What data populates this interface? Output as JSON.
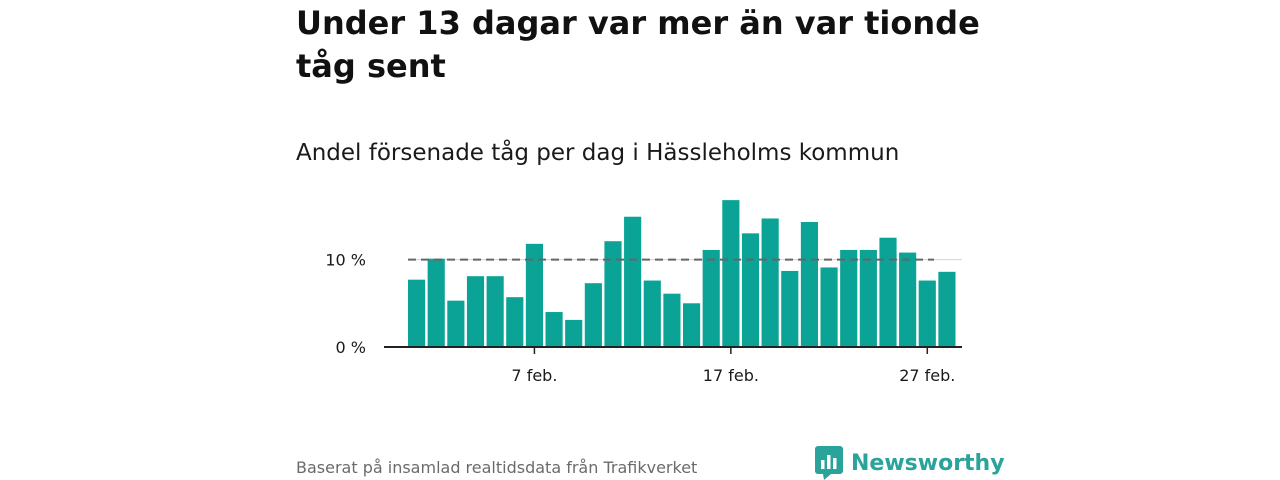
{
  "title": "Under 13 dagar var mer än var tionde tåg sent",
  "subtitle": "Andel försenade tåg per dag i Hässleholms kommun",
  "source": "Baserat på insamlad realtidsdata från Trafikverket",
  "brand": {
    "name": "Newsworthy",
    "icon": "newsworthy-logo-icon",
    "color": "#2aa39a"
  },
  "chart_data": {
    "type": "bar",
    "title": "Andel försenade tåg per dag i Hässleholms kommun",
    "xlabel": "",
    "ylabel": "",
    "unit": "%",
    "bar_color": "#0aa396",
    "x": [
      "1 feb.",
      "2 feb.",
      "3 feb.",
      "4 feb.",
      "5 feb.",
      "6 feb.",
      "7 feb.",
      "8 feb.",
      "9 feb.",
      "10 feb.",
      "11 feb.",
      "12 feb.",
      "13 feb.",
      "14 feb.",
      "15 feb.",
      "16 feb.",
      "17 feb.",
      "18 feb.",
      "19 feb.",
      "20 feb.",
      "21 feb.",
      "22 feb.",
      "23 feb.",
      "24 feb.",
      "25 feb.",
      "26 feb.",
      "27 feb.",
      "28 feb."
    ],
    "values": [
      7.7,
      10.1,
      5.3,
      8.1,
      8.1,
      5.7,
      11.8,
      4.0,
      3.1,
      7.3,
      12.1,
      14.9,
      7.6,
      6.1,
      5.0,
      11.1,
      16.8,
      13.0,
      14.7,
      8.7,
      14.3,
      9.1,
      11.1,
      11.1,
      12.5,
      10.8,
      7.6,
      8.6
    ],
    "ylim": [
      0,
      17.5
    ],
    "y_ticks": [
      {
        "value": 0,
        "label": "0 %"
      },
      {
        "value": 10,
        "label": "10 %"
      }
    ],
    "x_ticks": [
      {
        "index": 6,
        "label": "7 feb."
      },
      {
        "index": 16,
        "label": "17 feb."
      },
      {
        "index": 26,
        "label": "27 feb."
      }
    ],
    "reference_line": {
      "value": 10,
      "style": "dashed",
      "color": "#666666"
    },
    "grid": true,
    "legend": "none"
  }
}
